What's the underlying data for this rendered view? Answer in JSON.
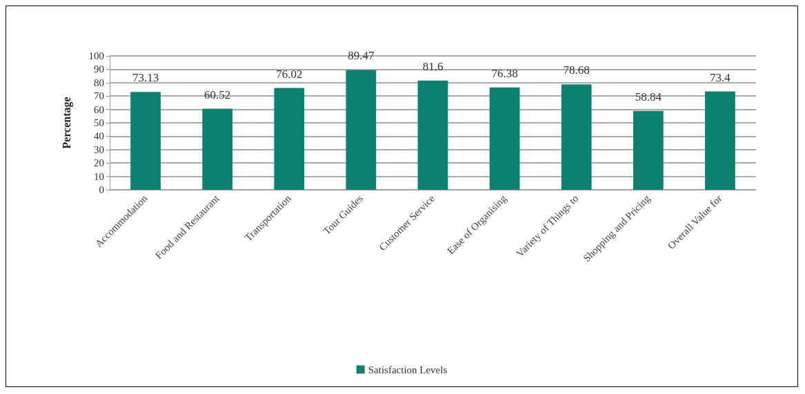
{
  "chart_data": {
    "type": "bar",
    "ylabel": "Percentage",
    "categories": [
      "Accommodation",
      "Food and Restaurant",
      "Transportation",
      "Tour Guides",
      "Customer Service",
      "Ease of Organising",
      "Variety of Things to",
      "Shopping and Pricing",
      "Overall Value for"
    ],
    "series": [
      {
        "name": "Satisfaction Levels",
        "color": "#0e8070",
        "values": [
          73.13,
          60.52,
          76.02,
          89.47,
          81.6,
          76.38,
          78.68,
          58.84,
          73.4
        ]
      }
    ],
    "ylim": [
      0,
      100
    ],
    "yticks": [
      0,
      10,
      20,
      30,
      40,
      50,
      60,
      70,
      80,
      90,
      100
    ],
    "grid": "y",
    "legend": "bottom",
    "data_labels": true
  }
}
